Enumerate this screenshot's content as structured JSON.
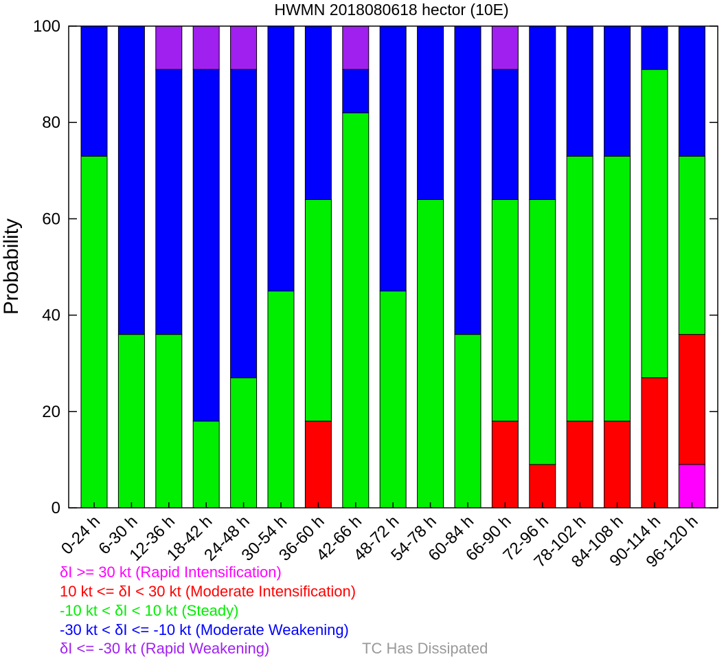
{
  "chart_data": {
    "type": "bar",
    "stacked": true,
    "title": "HWMN 2018080618 hector (10E)",
    "ylabel": "Probability",
    "xlabel": "",
    "ylim": [
      0,
      100
    ],
    "yticks": [
      0,
      20,
      40,
      60,
      80,
      100
    ],
    "categories": [
      "0-24 h",
      "6-30 h",
      "12-36 h",
      "18-42 h",
      "24-48 h",
      "30-54 h",
      "36-60 h",
      "42-66 h",
      "48-72 h",
      "54-78 h",
      "60-84 h",
      "66-90 h",
      "72-96 h",
      "78-102 h",
      "84-108 h",
      "90-114 h",
      "96-120 h"
    ],
    "series": [
      {
        "key": "ri",
        "color": "#ff00ff",
        "values": [
          0,
          0,
          0,
          0,
          0,
          0,
          0,
          0,
          0,
          0,
          0,
          0,
          0,
          0,
          0,
          0,
          9
        ]
      },
      {
        "key": "mi",
        "color": "#ff0000",
        "values": [
          0,
          0,
          0,
          0,
          0,
          0,
          18,
          0,
          0,
          0,
          0,
          18,
          9,
          18,
          18,
          27,
          27
        ]
      },
      {
        "key": "steady",
        "color": "#00ee00",
        "values": [
          73,
          36,
          36,
          18,
          27,
          45,
          46,
          82,
          45,
          64,
          36,
          46,
          55,
          55,
          55,
          64,
          37
        ]
      },
      {
        "key": "mw",
        "color": "#0000ff",
        "values": [
          27,
          64,
          55,
          73,
          64,
          55,
          36,
          9,
          55,
          36,
          64,
          27,
          36,
          27,
          27,
          9,
          27
        ]
      },
      {
        "key": "rw",
        "color": "#a020f0",
        "values": [
          0,
          0,
          9,
          9,
          9,
          0,
          0,
          9,
          0,
          0,
          0,
          9,
          0,
          0,
          0,
          0,
          0
        ]
      }
    ],
    "grid": false
  },
  "legend": {
    "items": [
      {
        "text": "δI >= 30 kt (Rapid Intensification)",
        "color": "#ff00ff"
      },
      {
        "text": "10 kt <= δI < 30 kt (Moderate Intensification)",
        "color": "#ff0000"
      },
      {
        "text": "-10 kt < δI < 10 kt (Steady)",
        "color": "#00ee00"
      },
      {
        "text": "-30 kt < δI <= -10 kt (Moderate Weakening)",
        "color": "#0000ff"
      },
      {
        "text": "δI <= -30 kt (Rapid Weakening)",
        "color": "#a020f0"
      }
    ],
    "dissipated": {
      "text": "TC Has Dissipated",
      "color": "#999999"
    }
  }
}
